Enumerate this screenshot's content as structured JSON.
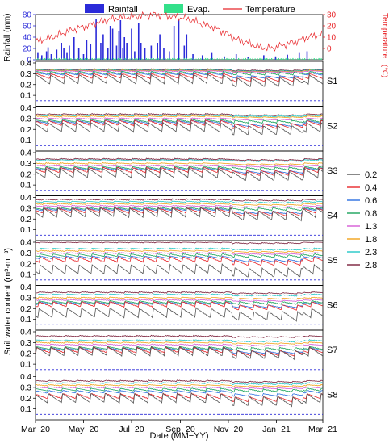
{
  "chart_data": {
    "type": "line",
    "legend_top": {
      "placement": "top-center",
      "entries": [
        {
          "label": "Rainfall",
          "color": "#2b2bd9",
          "kind": "bar"
        },
        {
          "label": "Evap.",
          "color": "#33e08a",
          "kind": "bar"
        },
        {
          "label": "Temperature",
          "color": "#e8262a",
          "kind": "line"
        }
      ]
    },
    "weather_panel": {
      "ylabel_left": "Rainfall (mm)",
      "ylabel_right": "Temperature",
      "ylabel_right_unit": "(℃)",
      "ylim_left": [
        0,
        80
      ],
      "ylim_right": [
        -10,
        30
      ],
      "yticks_left": [
        "80",
        "60",
        "40",
        "20",
        "0"
      ],
      "yticks_right": [
        "30",
        "20",
        "10",
        "0"
      ],
      "rainfall_days": [
        3,
        8,
        14,
        16,
        20,
        27,
        33,
        36,
        40,
        43,
        49,
        55,
        61,
        65,
        70,
        77,
        83,
        86,
        92,
        95,
        98,
        103,
        106,
        108,
        111,
        113,
        116,
        122,
        126,
        131,
        134,
        139,
        147,
        155,
        158,
        163,
        170,
        176,
        182,
        189,
        192,
        200,
        212,
        224,
        240,
        255,
        270,
        290,
        305,
        320,
        335,
        345
      ],
      "rainfall_mm": [
        12,
        8,
        15,
        22,
        10,
        18,
        30,
        20,
        12,
        25,
        40,
        20,
        10,
        35,
        28,
        72,
        30,
        45,
        20,
        60,
        55,
        25,
        50,
        70,
        20,
        40,
        30,
        55,
        15,
        65,
        30,
        20,
        25,
        30,
        45,
        20,
        15,
        60,
        70,
        25,
        45,
        10,
        8,
        12,
        6,
        10,
        5,
        8,
        6,
        9,
        12,
        15
      ],
      "temperature_days": [
        0,
        15,
        30,
        45,
        60,
        75,
        90,
        105,
        120,
        135,
        150,
        165,
        180,
        195,
        210,
        225,
        240,
        255,
        270,
        285,
        300,
        315,
        330,
        345,
        362
      ],
      "temperature_c": [
        6,
        9,
        12,
        16,
        19,
        22,
        25,
        27,
        28,
        29,
        30,
        29,
        28,
        26,
        22,
        19,
        14,
        8,
        5,
        1,
        0,
        3,
        6,
        10,
        12
      ],
      "evap_level_mm": 3
    },
    "soil_panel": {
      "ylabel": "Soil water content (m³·m⁻³)",
      "xlabel": "Date (MM−YY)",
      "x_tick_labels": [
        "Mar−20",
        "May−20",
        "Jul−20",
        "Sep−20",
        "Nov−20",
        "Jan−21",
        "Mar−21"
      ],
      "x_tick_days": [
        0,
        61,
        122,
        184,
        245,
        306,
        365
      ],
      "x_range_days": [
        0,
        365
      ],
      "ylim": [
        0,
        0.4
      ],
      "yticks": [
        "0.4",
        "0.3",
        "0.2",
        "0.1"
      ],
      "dashed_divider_value": 0.05,
      "depth_legend": {
        "placement": "right",
        "entries": [
          {
            "label": "0.2",
            "color": "#555555"
          },
          {
            "label": "0.4",
            "color": "#e8262a"
          },
          {
            "label": "0.6",
            "color": "#2a6fe0"
          },
          {
            "label": "0.8",
            "color": "#1aa35a"
          },
          {
            "label": "1.3",
            "color": "#d65bd6"
          },
          {
            "label": "1.8",
            "color": "#f2a21a"
          },
          {
            "label": "2.3",
            "color": "#22c7c7"
          },
          {
            "label": "2.8",
            "color": "#7a1f3a"
          }
        ]
      },
      "sites": [
        {
          "name": "S1",
          "base": [
            0.25,
            0.28,
            0.3,
            0.31,
            0.325,
            0.33,
            0.335,
            0.34
          ],
          "events": 20
        },
        {
          "name": "S2",
          "base": [
            0.22,
            0.26,
            0.27,
            0.28,
            0.3,
            0.32,
            0.33,
            0.34
          ],
          "events": 20
        },
        {
          "name": "S3",
          "base": [
            0.21,
            0.24,
            0.25,
            0.26,
            0.28,
            0.3,
            0.33,
            0.34
          ],
          "events": 20
        },
        {
          "name": "S4",
          "base": [
            0.26,
            0.28,
            0.29,
            0.3,
            0.32,
            0.34,
            0.36,
            0.38
          ],
          "events": 20
        },
        {
          "name": "S5",
          "base": [
            0.15,
            0.24,
            0.26,
            0.28,
            0.3,
            0.32,
            0.34,
            0.4
          ],
          "events": 22
        },
        {
          "name": "S6",
          "base": [
            0.16,
            0.24,
            0.25,
            0.26,
            0.28,
            0.3,
            0.33,
            0.35
          ],
          "events": 20
        },
        {
          "name": "S7",
          "base": [
            0.22,
            0.23,
            0.24,
            0.25,
            0.28,
            0.3,
            0.32,
            0.36
          ],
          "events": 20
        },
        {
          "name": "S8",
          "base": [
            0.2,
            0.22,
            0.26,
            0.28,
            0.3,
            0.32,
            0.34,
            0.36
          ],
          "events": 20
        }
      ]
    }
  }
}
